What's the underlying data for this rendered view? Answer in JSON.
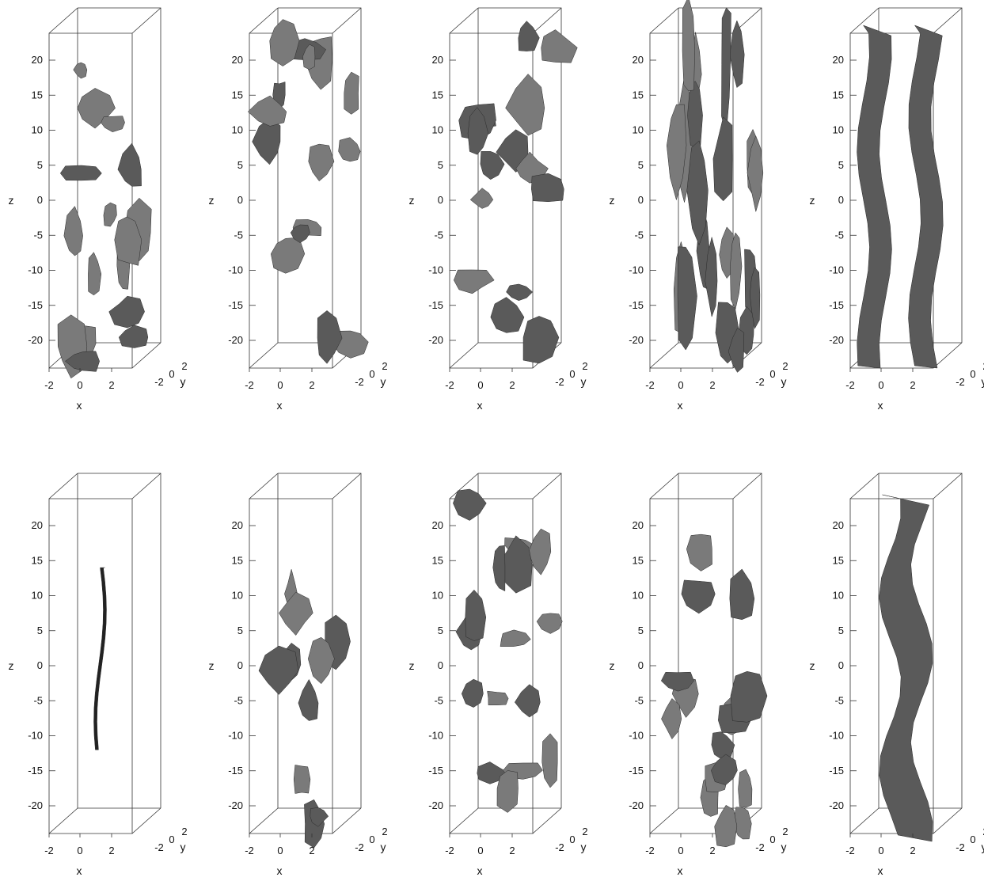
{
  "figure": {
    "z_ticks": [
      "20",
      "15",
      "10",
      "5",
      "0",
      "-5",
      "-10",
      "-15",
      "-20"
    ],
    "x_ticks": [
      "-2",
      "0",
      "2"
    ],
    "y_ticks": [
      "-2",
      "0",
      "2"
    ],
    "axis_labels": {
      "x": "x",
      "y": "y",
      "z": "z"
    },
    "surface_color": "#5a5a5a",
    "rows": [
      {
        "panels": [
          {
            "structure": "fragmented sheets"
          },
          {
            "structure": "scattered ribbons"
          },
          {
            "structure": "fragmented sheets"
          },
          {
            "structure": "dense vertical filaments"
          },
          {
            "structure": "two tubes"
          }
        ]
      },
      {
        "panels": [
          {
            "structure": "single thin filament"
          },
          {
            "structure": "sparse fragments"
          },
          {
            "structure": "leaf fragments"
          },
          {
            "structure": "scattered blobs"
          },
          {
            "structure": "twisted tube"
          }
        ]
      }
    ]
  }
}
